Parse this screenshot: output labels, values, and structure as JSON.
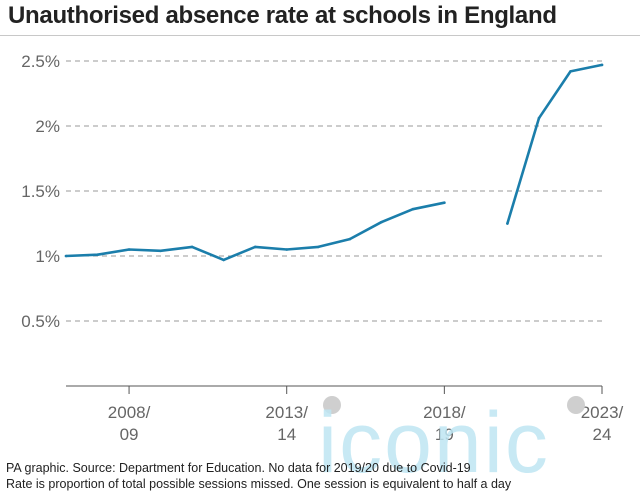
{
  "title": "Unauthorised absence rate at schools in England",
  "footer": {
    "line1": "PA graphic. Source: Department for Education. No data for 2019/20 due to Covid-19",
    "line2": "Rate is proportion of total possible sessions missed. One session is equivalent to half a day"
  },
  "watermark": {
    "text": "iconic",
    "icon": "iconic-watermark-logo"
  },
  "colors": {
    "line": "#1b7eab",
    "grid": "#9a9a9a",
    "axis": "#555555",
    "tick_text": "#666666",
    "watermark": "#bfe6f3"
  },
  "chart_data": {
    "type": "line",
    "title": "Unauthorised absence rate at schools in England",
    "xlabel": "",
    "ylabel": "",
    "ylim": [
      0,
      2.5
    ],
    "grid": true,
    "x": [
      "2006/07",
      "2007/08",
      "2008/09",
      "2009/10",
      "2010/11",
      "2011/12",
      "2012/13",
      "2013/14",
      "2014/15",
      "2015/16",
      "2016/17",
      "2017/18",
      "2018/19",
      "2019/20",
      "2020/21",
      "2021/22",
      "2022/23",
      "2023/24"
    ],
    "values": [
      1.0,
      1.01,
      1.05,
      1.04,
      1.07,
      0.97,
      1.07,
      1.05,
      1.07,
      1.13,
      1.26,
      1.36,
      1.41,
      null,
      1.25,
      2.06,
      2.42,
      2.47
    ],
    "yticks": [
      {
        "value": 0.5,
        "label": "0.5%"
      },
      {
        "value": 1.0,
        "label": "1%"
      },
      {
        "value": 1.5,
        "label": "1.5%"
      },
      {
        "value": 2.0,
        "label": "2%"
      },
      {
        "value": 2.5,
        "label": "2.5%"
      }
    ],
    "xticks": [
      {
        "x": "2008/09",
        "line1": "2008/",
        "line2": "09"
      },
      {
        "x": "2013/14",
        "line1": "2013/",
        "line2": "14"
      },
      {
        "x": "2018/19",
        "line1": "2018/",
        "line2": "19"
      },
      {
        "x": "2023/24",
        "line1": "2023/",
        "line2": "24"
      }
    ]
  }
}
